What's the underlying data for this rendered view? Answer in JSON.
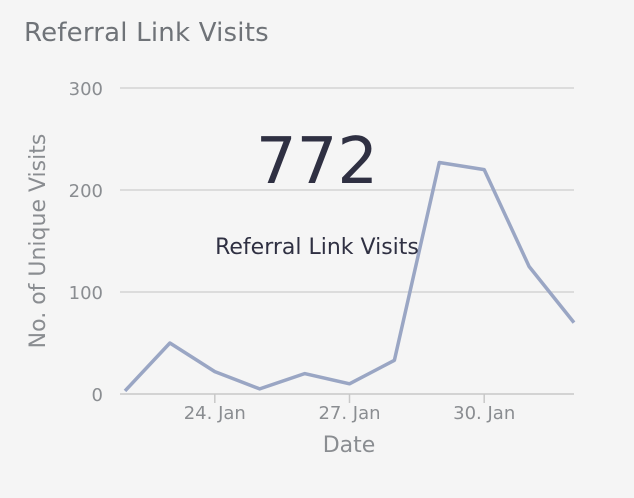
{
  "card": {
    "title": "Referral Link Visits"
  },
  "kpi": {
    "value": "772",
    "label": "Referral Link Visits"
  },
  "chart_data": {
    "type": "line",
    "title": "Referral Link Visits",
    "xlabel": "Date",
    "ylabel": "No. of Unique Visits",
    "ylim": [
      0,
      300
    ],
    "yticks": [
      0,
      100,
      200,
      300
    ],
    "xticks": [
      "24. Jan",
      "27. Jan",
      "30. Jan"
    ],
    "x": [
      "22. Jan",
      "23. Jan",
      "24. Jan",
      "25. Jan",
      "26. Jan",
      "27. Jan",
      "28. Jan",
      "29. Jan",
      "30. Jan",
      "31. Jan",
      "1. Feb"
    ],
    "series": [
      {
        "name": "Referral Link Visits",
        "values": [
          3,
          50,
          22,
          5,
          20,
          10,
          33,
          227,
          220,
          125,
          70
        ],
        "color": "#9aa6c4"
      }
    ],
    "grid": true,
    "gridColor": "#d3d3d3"
  }
}
